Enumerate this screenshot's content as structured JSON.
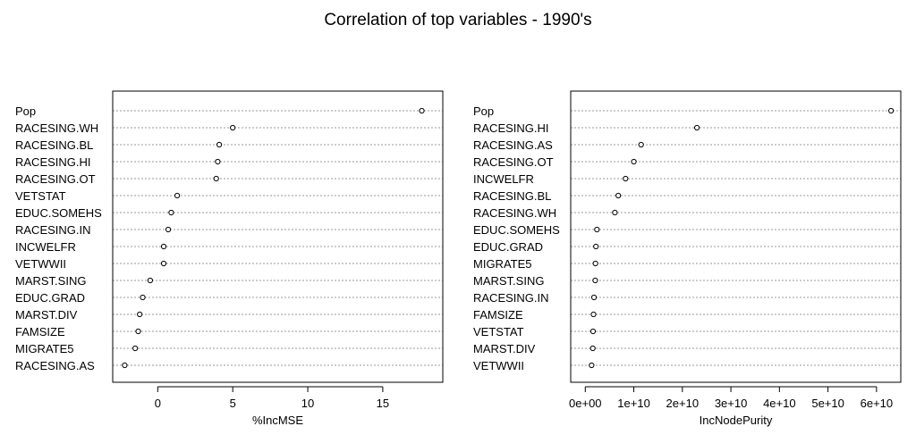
{
  "title": "Correlation of top variables - 1990's",
  "chart_data": [
    {
      "type": "scatter",
      "subtype": "dotchart",
      "xlabel": "%IncMSE",
      "ylabel": "",
      "xlim": [
        -3,
        19
      ],
      "xticks": [
        0,
        5,
        10,
        15
      ],
      "xtick_labels": [
        "0",
        "5",
        "10",
        "15"
      ],
      "grid": "dotted horizontal lines",
      "categories": [
        "Pop",
        "RACESING.WH",
        "RACESING.BL",
        "RACESING.HI",
        "RACESING.OT",
        "VETSTAT",
        "EDUC.SOMEHS",
        "RACESING.IN",
        "INCWELFR",
        "VETWWII",
        "MARST.SING",
        "EDUC.GRAD",
        "MARST.DIV",
        "FAMSIZE",
        "MIGRATE5",
        "RACESING.AS"
      ],
      "values": [
        17.6,
        5.0,
        4.1,
        4.0,
        3.9,
        1.3,
        0.9,
        0.7,
        0.4,
        0.4,
        -0.5,
        -1.0,
        -1.2,
        -1.3,
        -1.5,
        -2.2
      ]
    },
    {
      "type": "scatter",
      "subtype": "dotchart",
      "xlabel": "IncNodePurity",
      "ylabel": "",
      "xlim": [
        -3000000000.0,
        65000000000.0
      ],
      "xticks": [
        0,
        10000000000.0,
        20000000000.0,
        30000000000.0,
        40000000000.0,
        50000000000.0,
        60000000000.0
      ],
      "xtick_labels": [
        "0e+00",
        "1e+10",
        "2e+10",
        "3e+10",
        "4e+10",
        "5e+10",
        "6e+10"
      ],
      "grid": "dotted horizontal lines",
      "categories": [
        "Pop",
        "RACESING.HI",
        "RACESING.AS",
        "RACESING.OT",
        "INCWELFR",
        "RACESING.BL",
        "RACESING.WH",
        "EDUC.SOMEHS",
        "EDUC.GRAD",
        "MIGRATE5",
        "MARST.SING",
        "RACESING.IN",
        "FAMSIZE",
        "VETSTAT",
        "MARST.DIV",
        "VETWWII"
      ],
      "values": [
        63000000000.0,
        23000000000.0,
        11500000000.0,
        10000000000.0,
        8300000000.0,
        6800000000.0,
        6100000000.0,
        2400000000.0,
        2200000000.0,
        2100000000.0,
        2050000000.0,
        1800000000.0,
        1700000000.0,
        1600000000.0,
        1550000000.0,
        1300000000.0
      ]
    }
  ]
}
